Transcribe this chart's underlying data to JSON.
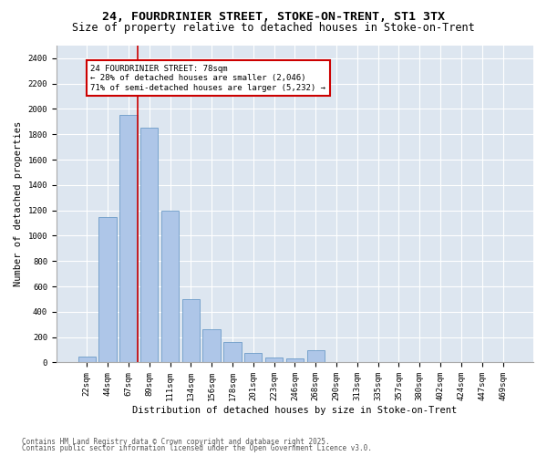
{
  "title1": "24, FOURDRINIER STREET, STOKE-ON-TRENT, ST1 3TX",
  "title2": "Size of property relative to detached houses in Stoke-on-Trent",
  "xlabel": "Distribution of detached houses by size in Stoke-on-Trent",
  "ylabel": "Number of detached properties",
  "categories": [
    "22sqm",
    "44sqm",
    "67sqm",
    "89sqm",
    "111sqm",
    "134sqm",
    "156sqm",
    "178sqm",
    "201sqm",
    "223sqm",
    "246sqm",
    "268sqm",
    "290sqm",
    "313sqm",
    "335sqm",
    "357sqm",
    "380sqm",
    "402sqm",
    "424sqm",
    "447sqm",
    "469sqm"
  ],
  "values": [
    50,
    1150,
    1950,
    1850,
    1200,
    500,
    260,
    165,
    75,
    40,
    30,
    100,
    0,
    0,
    0,
    0,
    0,
    0,
    0,
    0,
    0
  ],
  "bar_color": "#aec6e8",
  "bar_edge_color": "#5a8fc0",
  "vline_color": "#cc0000",
  "annotation_text": "24 FOURDRINIER STREET: 78sqm\n← 28% of detached houses are smaller (2,046)\n71% of semi-detached houses are larger (5,232) →",
  "annotation_box_color": "#ffffff",
  "annotation_box_edge_color": "#cc0000",
  "ylim": [
    0,
    2500
  ],
  "yticks": [
    0,
    200,
    400,
    600,
    800,
    1000,
    1200,
    1400,
    1600,
    1800,
    2000,
    2200,
    2400
  ],
  "bg_color": "#dde6f0",
  "footer1": "Contains HM Land Registry data © Crown copyright and database right 2025.",
  "footer2": "Contains public sector information licensed under the Open Government Licence v3.0.",
  "title1_fontsize": 9.5,
  "title2_fontsize": 8.5,
  "xlabel_fontsize": 7.5,
  "ylabel_fontsize": 7.5,
  "tick_fontsize": 6.5,
  "annotation_fontsize": 6.5,
  "footer_fontsize": 5.5
}
